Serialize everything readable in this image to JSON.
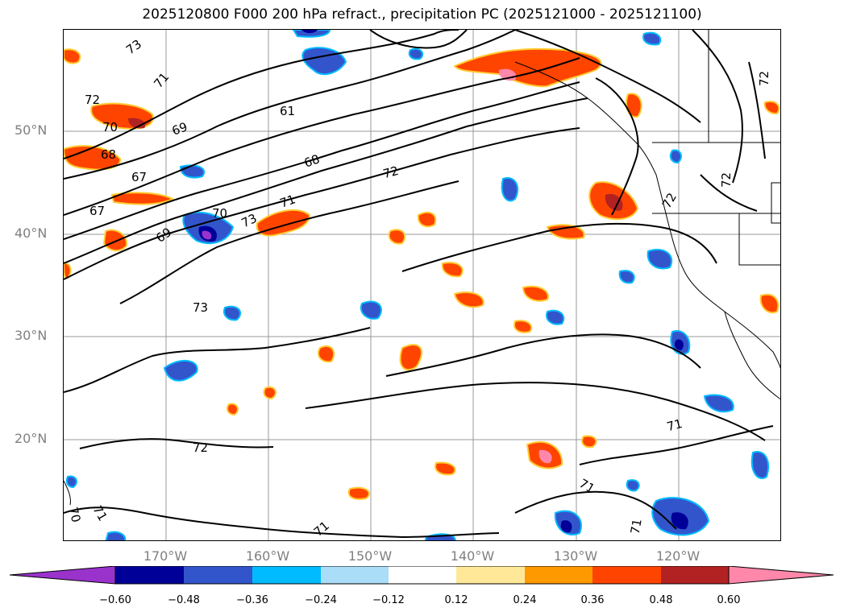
{
  "title": "2025120800 F000 200 hPa refract., precipitation PC (2025121000 - 2025121100)",
  "map": {
    "lat_labels": [
      "50°N",
      "40°N",
      "30°N",
      "20°N"
    ],
    "lon_labels": [
      "170°W",
      "160°W",
      "150°W",
      "140°W",
      "130°W",
      "120°W"
    ],
    "contour_labels": [
      "73",
      "71",
      "72",
      "70",
      "69",
      "68",
      "67",
      "67",
      "69",
      "70",
      "73",
      "71",
      "72",
      "68",
      "61",
      "72",
      "72",
      "72",
      "73",
      "72",
      "71",
      "71",
      "71",
      "70",
      "71",
      "71"
    ],
    "contour_color": "#000000",
    "grid_color": "#999999"
  },
  "colorbar": {
    "labels": [
      "−0.60",
      "−0.48",
      "−0.36",
      "−0.24",
      "−0.12",
      "0.12",
      "0.24",
      "0.36",
      "0.48",
      "0.60"
    ],
    "colors": [
      "#9933cc",
      "#000099",
      "#3355cc",
      "#00bbff",
      "#aaddf7",
      "#ffffff",
      "#ffe999",
      "#ff9900",
      "#ff4400",
      "#b22222",
      "#ff88aa"
    ]
  }
}
